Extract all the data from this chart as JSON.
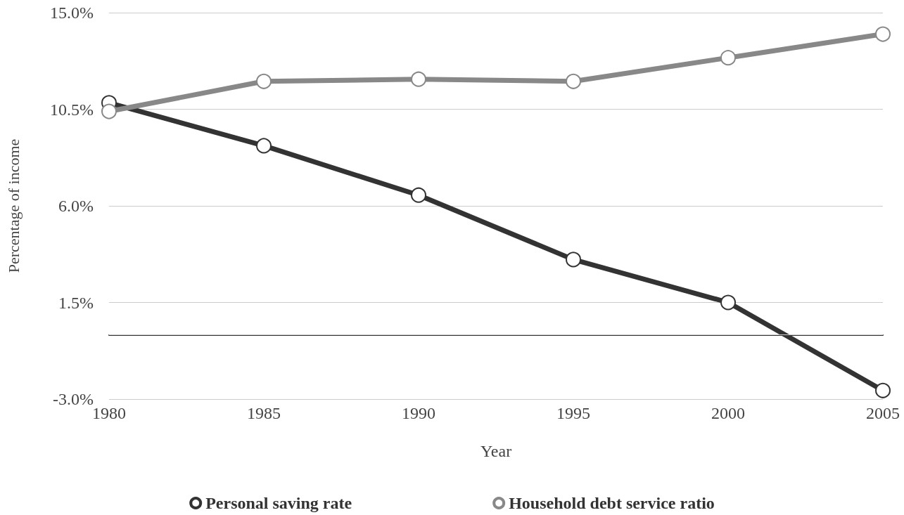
{
  "chart_data": {
    "type": "line",
    "xlabel": "Year",
    "ylabel": "Percentage of income",
    "categories": [
      "1980",
      "1985",
      "1990",
      "1995",
      "2000",
      "2005"
    ],
    "series": [
      {
        "name": "Personal saving rate",
        "color": "#333333",
        "values": [
          10.8,
          8.8,
          6.5,
          3.5,
          1.5,
          -2.6
        ]
      },
      {
        "name": "Household debt service ratio",
        "color": "#888888",
        "values": [
          10.4,
          11.8,
          11.9,
          11.8,
          12.9,
          14.0
        ]
      }
    ],
    "ylim": [
      -3.0,
      15.0
    ],
    "yticks": [
      {
        "value": -3.0,
        "label": "-3.0%"
      },
      {
        "value": 1.5,
        "label": "1.5%"
      },
      {
        "value": 6.0,
        "label": "6.0%"
      },
      {
        "value": 10.5,
        "label": "10.5%"
      },
      {
        "value": 15.0,
        "label": "15.0%"
      }
    ],
    "ref_lines": [
      {
        "axis": "y",
        "value": 0,
        "label": null
      }
    ],
    "grid": "y",
    "legend": "bottom",
    "marker": "circle",
    "line_style": "solid"
  }
}
